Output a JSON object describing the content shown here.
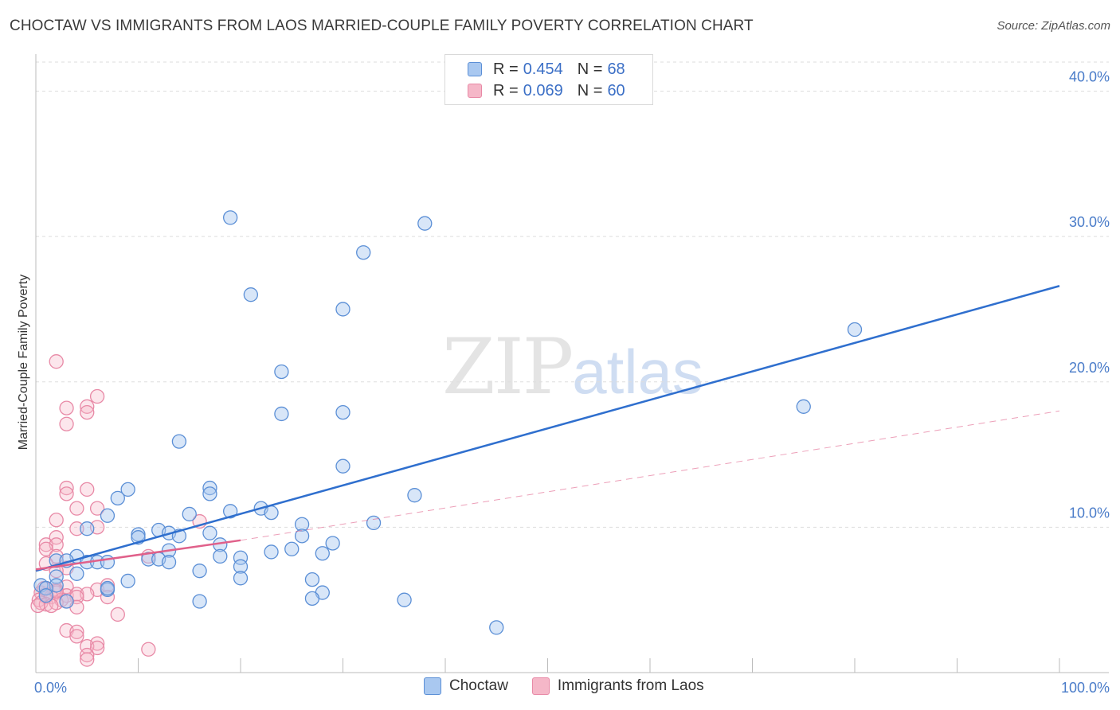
{
  "header": {
    "title": "CHOCTAW VS IMMIGRANTS FROM LAOS MARRIED-COUPLE FAMILY POVERTY CORRELATION CHART",
    "source": "Source: ZipAtlas.com"
  },
  "watermark": {
    "zip": "ZIP",
    "atlas": "atlas"
  },
  "legend": {
    "rows": [
      {
        "r_label": "R =",
        "r_value": "0.454",
        "n_label": "N =",
        "n_value": "68"
      },
      {
        "r_label": "R =",
        "r_value": "0.069",
        "n_label": "N =",
        "n_value": "60"
      }
    ]
  },
  "colors": {
    "choctaw_fill": "#a9c8f0",
    "choctaw_stroke": "#5b8fd6",
    "choctaw_line": "#2f6fce",
    "laos_fill": "#f5b7c8",
    "laos_stroke": "#e889a6",
    "laos_line": "#e0608a",
    "grid": "#dddddd",
    "axis_text": "#4a7cc9"
  },
  "chart_data": {
    "type": "scatter",
    "title": "CHOCTAW VS IMMIGRANTS FROM LAOS MARRIED-COUPLE FAMILY POVERTY CORRELATION CHART",
    "xlabel": "",
    "ylabel": "Married-Couple Family Poverty",
    "xlim": [
      0,
      100
    ],
    "ylim": [
      0,
      42
    ],
    "x_ticks": [
      "0.0%",
      "100.0%"
    ],
    "y_ticks": [
      {
        "value": 10,
        "label": "10.0%"
      },
      {
        "value": 20,
        "label": "20.0%"
      },
      {
        "value": 30,
        "label": "30.0%"
      },
      {
        "value": 40,
        "label": "40.0%"
      }
    ],
    "legend_position": "top-center",
    "series": [
      {
        "name": "Choctaw",
        "r": 0.454,
        "n": 68,
        "trend": {
          "x0": 0,
          "y0": 7.0,
          "x1": 100,
          "y1": 26.6,
          "dashed_extension": false
        },
        "points": [
          [
            19,
            31.3
          ],
          [
            38,
            30.9
          ],
          [
            32,
            28.9
          ],
          [
            21,
            26.0
          ],
          [
            30,
            25.0
          ],
          [
            80,
            23.6
          ],
          [
            24,
            20.7
          ],
          [
            24,
            17.8
          ],
          [
            30,
            17.9
          ],
          [
            75,
            18.3
          ],
          [
            14,
            15.9
          ],
          [
            30,
            14.2
          ],
          [
            9,
            12.6
          ],
          [
            17,
            12.7
          ],
          [
            17,
            12.3
          ],
          [
            37,
            12.2
          ],
          [
            8,
            12.0
          ],
          [
            19,
            11.1
          ],
          [
            22,
            11.3
          ],
          [
            23,
            11.0
          ],
          [
            15,
            10.9
          ],
          [
            7,
            10.8
          ],
          [
            26,
            10.2
          ],
          [
            33,
            10.3
          ],
          [
            5,
            9.9
          ],
          [
            10,
            9.5
          ],
          [
            12,
            9.8
          ],
          [
            10,
            9.3
          ],
          [
            13,
            9.6
          ],
          [
            14,
            9.4
          ],
          [
            17,
            9.6
          ],
          [
            26,
            9.4
          ],
          [
            18,
            8.8
          ],
          [
            29,
            8.9
          ],
          [
            13,
            8.4
          ],
          [
            23,
            8.3
          ],
          [
            25,
            8.5
          ],
          [
            28,
            8.2
          ],
          [
            18,
            8.0
          ],
          [
            20,
            7.9
          ],
          [
            4,
            8.0
          ],
          [
            5,
            7.6
          ],
          [
            6,
            7.6
          ],
          [
            7,
            7.6
          ],
          [
            11,
            7.8
          ],
          [
            12,
            7.8
          ],
          [
            13,
            7.6
          ],
          [
            20,
            7.3
          ],
          [
            16,
            7.0
          ],
          [
            2,
            7.7
          ],
          [
            3,
            7.7
          ],
          [
            4,
            6.8
          ],
          [
            2,
            6.6
          ],
          [
            9,
            6.3
          ],
          [
            20,
            6.5
          ],
          [
            27,
            6.4
          ],
          [
            2,
            6.0
          ],
          [
            0.5,
            6.0
          ],
          [
            1,
            5.8
          ],
          [
            7,
            5.7
          ],
          [
            7,
            5.8
          ],
          [
            28,
            5.5
          ],
          [
            27,
            5.1
          ],
          [
            3,
            4.9
          ],
          [
            16,
            4.9
          ],
          [
            36,
            5.0
          ],
          [
            45,
            3.1
          ],
          [
            1,
            5.3
          ]
        ]
      },
      {
        "name": "Immigrants from Laos",
        "r": 0.069,
        "n": 60,
        "trend": {
          "x0": 0,
          "y0": 7.1,
          "x1": 20,
          "y1": 9.1,
          "dash_to_x": 100,
          "dash_to_y": 18.0
        },
        "points": [
          [
            2,
            21.4
          ],
          [
            6,
            19.0
          ],
          [
            3,
            18.2
          ],
          [
            5,
            18.3
          ],
          [
            5,
            17.9
          ],
          [
            3,
            17.1
          ],
          [
            3,
            12.7
          ],
          [
            5,
            12.6
          ],
          [
            3,
            12.3
          ],
          [
            4,
            11.3
          ],
          [
            6,
            11.3
          ],
          [
            2,
            10.5
          ],
          [
            16,
            10.4
          ],
          [
            4,
            9.9
          ],
          [
            6,
            10.0
          ],
          [
            2,
            9.3
          ],
          [
            1,
            8.8
          ],
          [
            2,
            8.8
          ],
          [
            1,
            8.5
          ],
          [
            2,
            8.0
          ],
          [
            11,
            8.0
          ],
          [
            1,
            7.5
          ],
          [
            3,
            7.2
          ],
          [
            2,
            7.0
          ],
          [
            1,
            5.8
          ],
          [
            2,
            5.7
          ],
          [
            3,
            5.9
          ],
          [
            6,
            5.7
          ],
          [
            7,
            6.0
          ],
          [
            0.5,
            5.5
          ],
          [
            1,
            5.4
          ],
          [
            2,
            5.5
          ],
          [
            3,
            5.3
          ],
          [
            4,
            5.4
          ],
          [
            5,
            5.4
          ],
          [
            1,
            5.2
          ],
          [
            1.5,
            5.2
          ],
          [
            2.5,
            5.0
          ],
          [
            4,
            5.2
          ],
          [
            7,
            5.2
          ],
          [
            0.3,
            5.0
          ],
          [
            0.5,
            4.8
          ],
          [
            1,
            4.7
          ],
          [
            2,
            4.8
          ],
          [
            3,
            4.9
          ],
          [
            0.2,
            4.6
          ],
          [
            1.5,
            4.6
          ],
          [
            4,
            4.5
          ],
          [
            0.8,
            5.8
          ],
          [
            8,
            4.0
          ],
          [
            3,
            2.9
          ],
          [
            4,
            2.8
          ],
          [
            4,
            2.5
          ],
          [
            6,
            2.0
          ],
          [
            5,
            1.8
          ],
          [
            6,
            1.7
          ],
          [
            11,
            1.6
          ],
          [
            5,
            1.2
          ],
          [
            5,
            0.9
          ],
          [
            2,
            5.6
          ]
        ]
      }
    ]
  }
}
